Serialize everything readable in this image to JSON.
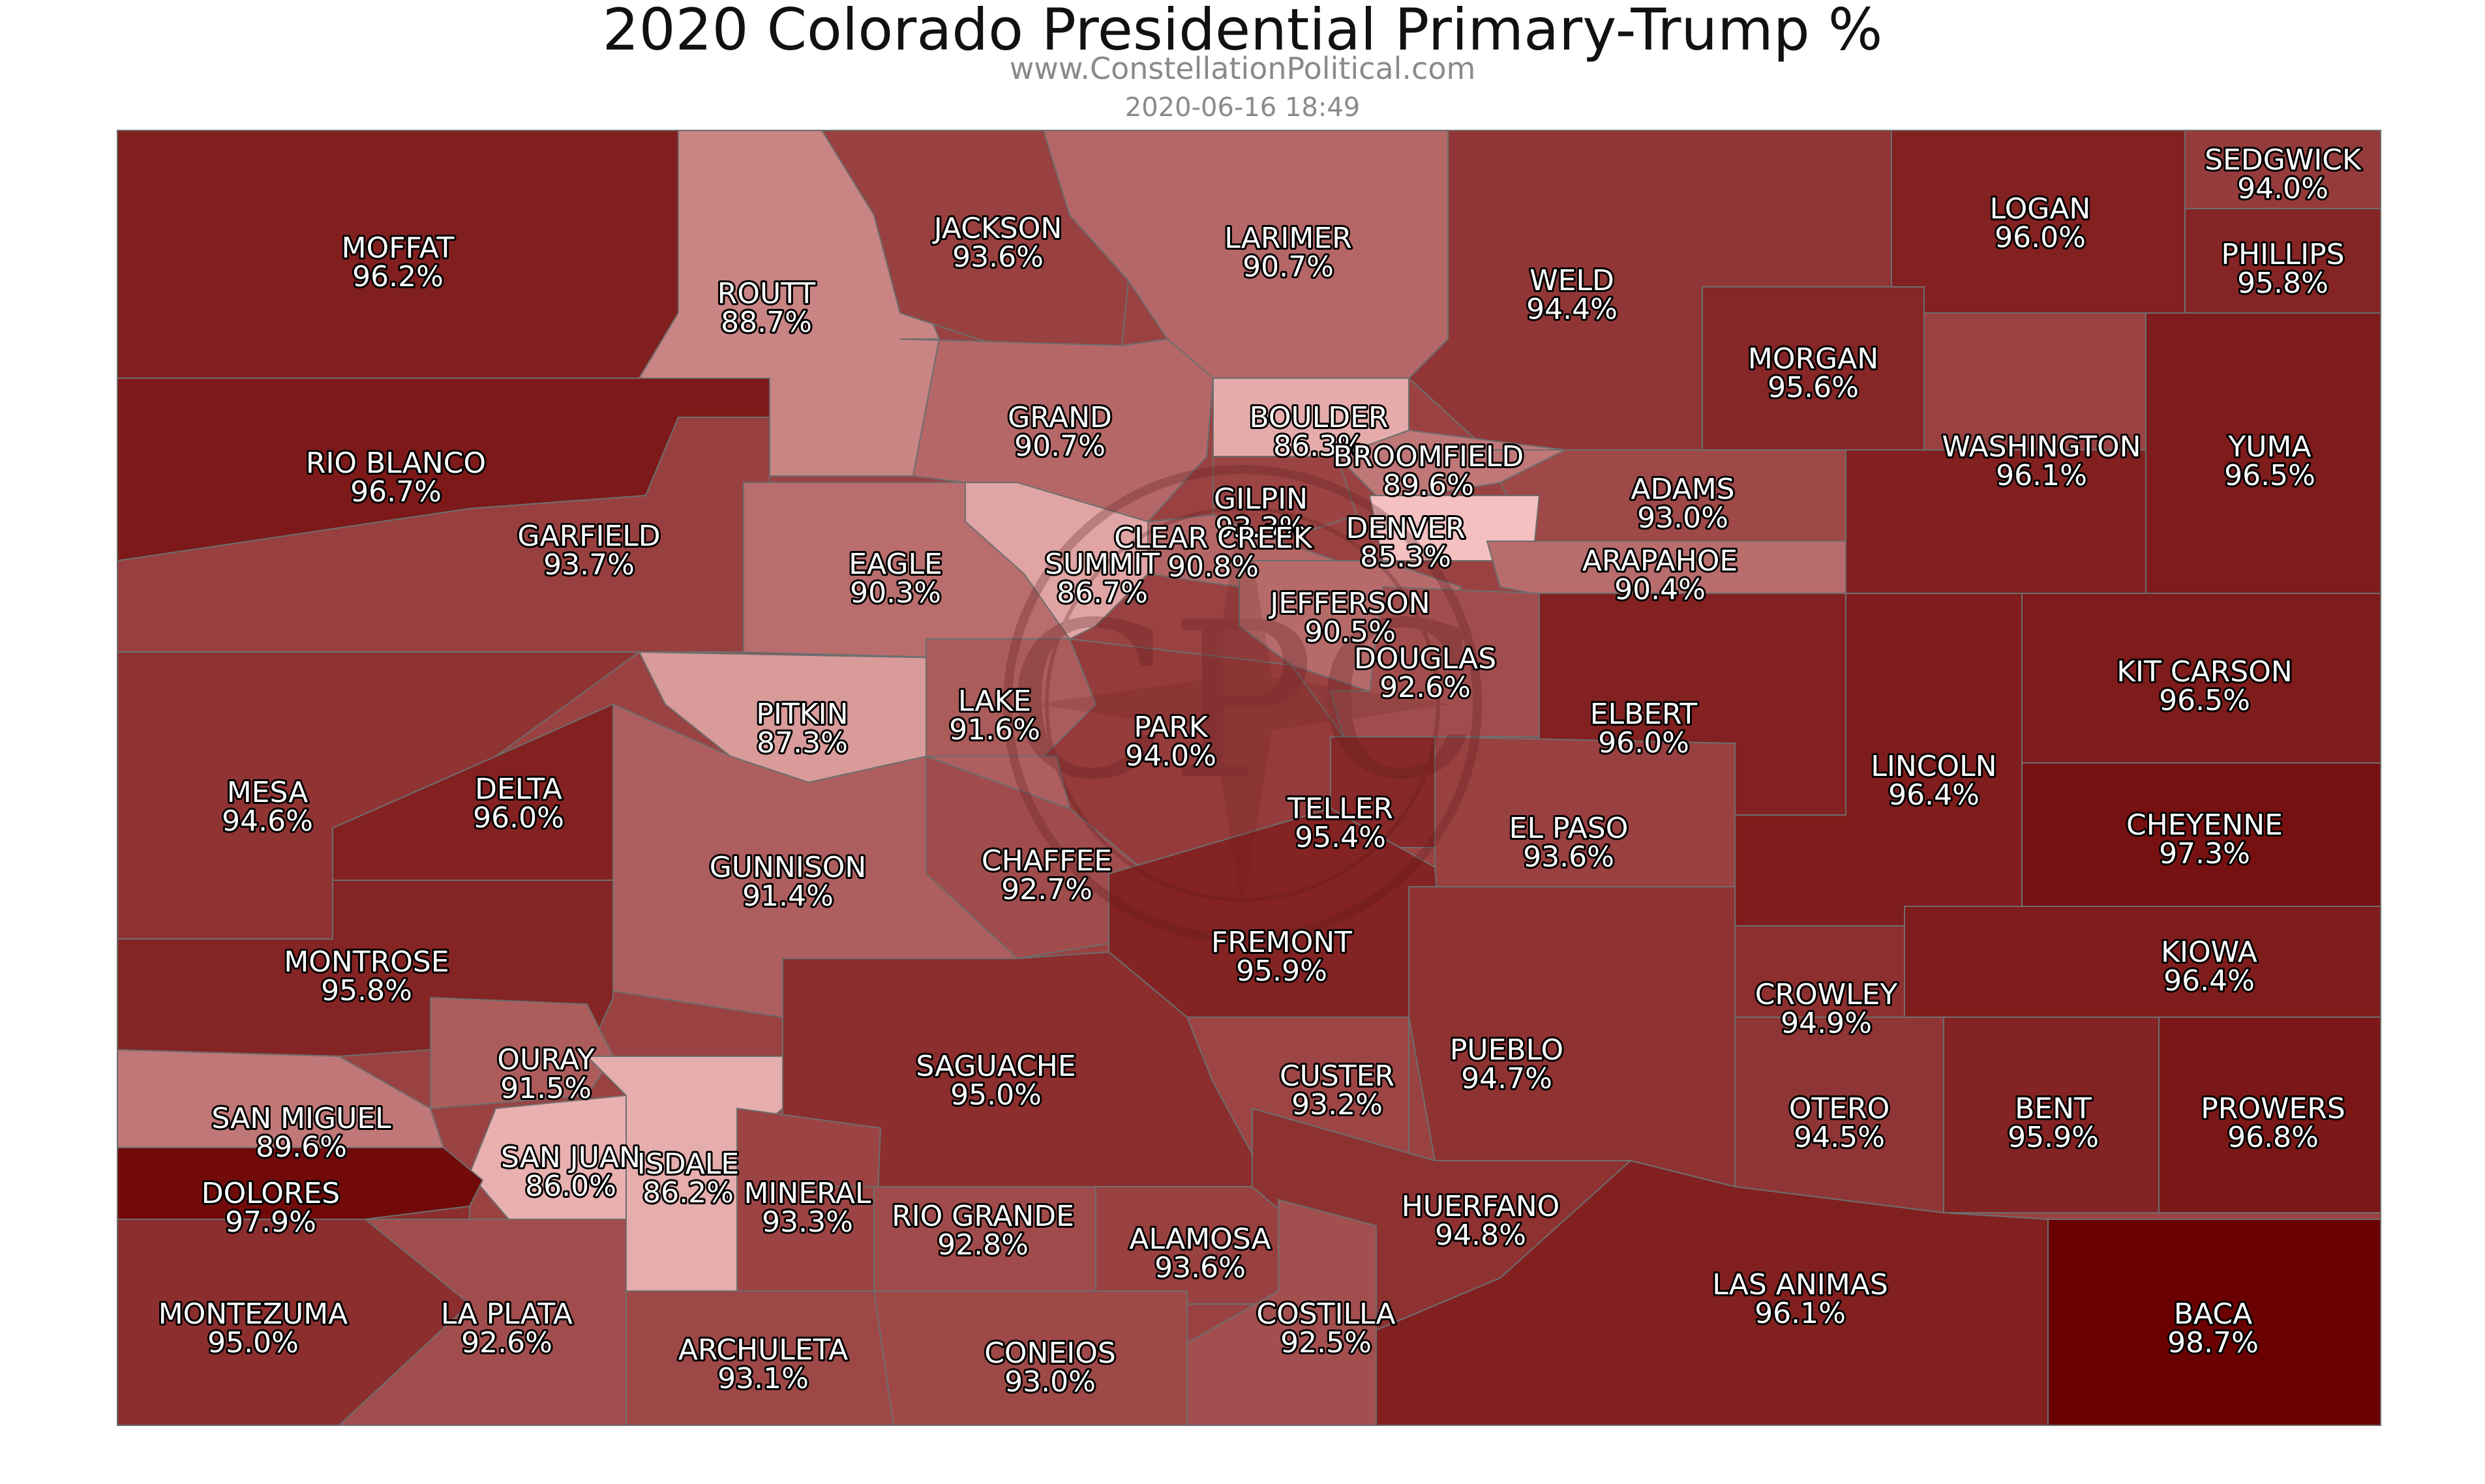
{
  "title": "2020 Colorado Presidential Primary-Trump %",
  "subtitle": "www.ConstellationPolitical.com",
  "timestamp": "2020-06-16 18:49",
  "logo_text": "CPC",
  "colors": {
    "lowest": "#f4c0c0",
    "highest": "#6b0000",
    "border": "#6e6e6e",
    "label_fill": "#ffffff",
    "label_stroke": "#000000"
  },
  "counties": [
    {
      "name": "MOFFAT",
      "pct": "96.2%",
      "value": 96.2
    },
    {
      "name": "ROUTT",
      "pct": "88.7%",
      "value": 88.7
    },
    {
      "name": "JACKSON",
      "pct": "93.6%",
      "value": 93.6
    },
    {
      "name": "LARIMER",
      "pct": "90.7%",
      "value": 90.7
    },
    {
      "name": "WELD",
      "pct": "94.4%",
      "value": 94.4
    },
    {
      "name": "LOGAN",
      "pct": "96.0%",
      "value": 96.0
    },
    {
      "name": "SEDGWICK",
      "pct": "94.0%",
      "value": 94.0
    },
    {
      "name": "PHILLIPS",
      "pct": "95.8%",
      "value": 95.8
    },
    {
      "name": "RIO BLANCO",
      "pct": "96.7%",
      "value": 96.7
    },
    {
      "name": "GRAND",
      "pct": "90.7%",
      "value": 90.7
    },
    {
      "name": "BOULDER",
      "pct": "86.3%",
      "value": 86.3
    },
    {
      "name": "MORGAN",
      "pct": "95.6%",
      "value": 95.6
    },
    {
      "name": "WASHINGTON",
      "pct": "96.1%",
      "value": 96.1
    },
    {
      "name": "YUMA",
      "pct": "96.5%",
      "value": 96.5
    },
    {
      "name": "GARFIELD",
      "pct": "93.7%",
      "value": 93.7
    },
    {
      "name": "BROOMFIELD",
      "pct": "89.6%",
      "value": 89.6
    },
    {
      "name": "GILPIN",
      "pct": "93.3%",
      "value": 93.3
    },
    {
      "name": "ADAMS",
      "pct": "93.0%",
      "value": 93.0
    },
    {
      "name": "EAGLE",
      "pct": "90.3%",
      "value": 90.3
    },
    {
      "name": "CLEAR CREEK",
      "pct": "90.8%",
      "value": 90.8
    },
    {
      "name": "SUMMIT",
      "pct": "86.7%",
      "value": 86.7
    },
    {
      "name": "DENVER",
      "pct": "85.3%",
      "value": 85.3
    },
    {
      "name": "ARAPAHOE",
      "pct": "90.4%",
      "value": 90.4
    },
    {
      "name": "JEFFERSON",
      "pct": "90.5%",
      "value": 90.5
    },
    {
      "name": "DOUGLAS",
      "pct": "92.6%",
      "value": 92.6
    },
    {
      "name": "KIT CARSON",
      "pct": "96.5%",
      "value": 96.5
    },
    {
      "name": "PITKIN",
      "pct": "87.3%",
      "value": 87.3
    },
    {
      "name": "LAKE",
      "pct": "91.6%",
      "value": 91.6
    },
    {
      "name": "PARK",
      "pct": "94.0%",
      "value": 94.0
    },
    {
      "name": "ELBERT",
      "pct": "96.0%",
      "value": 96.0
    },
    {
      "name": "LINCOLN",
      "pct": "96.4%",
      "value": 96.4
    },
    {
      "name": "MESA",
      "pct": "94.6%",
      "value": 94.6
    },
    {
      "name": "DELTA",
      "pct": "96.0%",
      "value": 96.0
    },
    {
      "name": "TELLER",
      "pct": "95.4%",
      "value": 95.4
    },
    {
      "name": "EL PASO",
      "pct": "93.6%",
      "value": 93.6
    },
    {
      "name": "CHEYENNE",
      "pct": "97.3%",
      "value": 97.3
    },
    {
      "name": "GUNNISON",
      "pct": "91.4%",
      "value": 91.4
    },
    {
      "name": "CHAFFEE",
      "pct": "92.7%",
      "value": 92.7
    },
    {
      "name": "FREMONT",
      "pct": "95.9%",
      "value": 95.9
    },
    {
      "name": "KIOWA",
      "pct": "96.4%",
      "value": 96.4
    },
    {
      "name": "MONTROSE",
      "pct": "95.8%",
      "value": 95.8
    },
    {
      "name": "CROWLEY",
      "pct": "94.9%",
      "value": 94.9
    },
    {
      "name": "OURAY",
      "pct": "91.5%",
      "value": 91.5
    },
    {
      "name": "SAGUACHE",
      "pct": "95.0%",
      "value": 95.0
    },
    {
      "name": "CUSTER",
      "pct": "93.2%",
      "value": 93.2
    },
    {
      "name": "PUEBLO",
      "pct": "94.7%",
      "value": 94.7
    },
    {
      "name": "SAN MIGUEL",
      "pct": "89.6%",
      "value": 89.6
    },
    {
      "name": "OTERO",
      "pct": "94.5%",
      "value": 94.5
    },
    {
      "name": "BENT",
      "pct": "95.9%",
      "value": 95.9
    },
    {
      "name": "PROWERS",
      "pct": "96.8%",
      "value": 96.8
    },
    {
      "name": "SAN JUAN",
      "pct": "86.0%",
      "value": 86.0
    },
    {
      "name": "HINSDALE",
      "display_name": "ISDALE",
      "pct": "86.2%",
      "value": 86.2
    },
    {
      "name": "DOLORES",
      "pct": "97.9%",
      "value": 97.9
    },
    {
      "name": "MINERAL",
      "pct": "93.3%",
      "value": 93.3
    },
    {
      "name": "RIO GRANDE",
      "pct": "92.8%",
      "value": 92.8
    },
    {
      "name": "ALAMOSA",
      "pct": "93.6%",
      "value": 93.6
    },
    {
      "name": "HUERFANO",
      "pct": "94.8%",
      "value": 94.8
    },
    {
      "name": "LAS ANIMAS",
      "pct": "96.1%",
      "value": 96.1
    },
    {
      "name": "MONTEZUMA",
      "pct": "95.0%",
      "value": 95.0
    },
    {
      "name": "LA PLATA",
      "pct": "92.6%",
      "value": 92.6
    },
    {
      "name": "COSTILLA",
      "pct": "92.5%",
      "value": 92.5
    },
    {
      "name": "ARCHULETA",
      "pct": "93.1%",
      "value": 93.1
    },
    {
      "name": "CONEJOS",
      "display_name": "CONEIOS",
      "pct": "93.0%",
      "value": 93.0
    },
    {
      "name": "BACA",
      "pct": "98.7%",
      "value": 98.7
    }
  ]
}
